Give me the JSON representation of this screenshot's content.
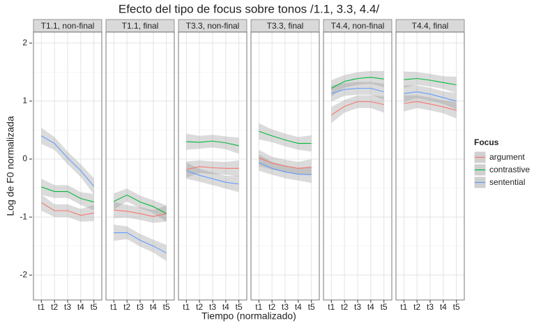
{
  "chart_data": {
    "type": "line",
    "title": "Efecto del tipo de focus sobre tonos /1.1, 3.3, 4.4/",
    "x_label": "Tiempo (normalizado)",
    "y_label": "Log de F0 normalizada",
    "legend_title": "Focus",
    "legend_position": "right",
    "grid": true,
    "categories": [
      "t1",
      "t2",
      "t3",
      "t4",
      "t5"
    ],
    "ylim": [
      -2.43,
      2.19
    ],
    "yticks": [
      -2,
      -1,
      0,
      1,
      2
    ],
    "series": [
      {
        "name": "argument",
        "color": "#F8766D"
      },
      {
        "name": "contrastive",
        "color": "#00BA38"
      },
      {
        "name": "sentential",
        "color": "#619CFF"
      }
    ],
    "facets": [
      {
        "title": "T1.1, non-final",
        "values": [
          [
            -0.75,
            -0.89,
            -0.89,
            -0.97,
            -0.93
          ],
          [
            -0.48,
            -0.56,
            -0.56,
            -0.68,
            -0.74
          ],
          [
            0.4,
            0.27,
            0.02,
            -0.2,
            -0.47
          ]
        ],
        "lower": [
          [
            -0.89,
            -1.0,
            -1.0,
            -1.08,
            -1.07
          ],
          [
            -0.62,
            -0.67,
            -0.67,
            -0.79,
            -0.88
          ],
          [
            0.26,
            0.16,
            -0.09,
            -0.31,
            -0.61
          ]
        ],
        "upper": [
          [
            -0.61,
            -0.78,
            -0.78,
            -0.86,
            -0.79
          ],
          [
            -0.34,
            -0.45,
            -0.45,
            -0.57,
            -0.6
          ],
          [
            0.54,
            0.38,
            0.13,
            -0.09,
            -0.33
          ]
        ]
      },
      {
        "title": "T1.1, final",
        "values": [
          [
            -0.88,
            -0.9,
            -0.94,
            -0.99,
            -0.94
          ],
          [
            -0.73,
            -0.62,
            -0.74,
            -0.82,
            -0.94
          ],
          [
            -1.27,
            -1.27,
            -1.4,
            -1.5,
            -1.62
          ]
        ],
        "lower": [
          [
            -1.02,
            -1.01,
            -1.05,
            -1.1,
            -1.08
          ],
          [
            -0.87,
            -0.73,
            -0.85,
            -0.93,
            -1.08
          ],
          [
            -1.41,
            -1.38,
            -1.51,
            -1.61,
            -1.76
          ]
        ],
        "upper": [
          [
            -0.74,
            -0.79,
            -0.83,
            -0.88,
            -0.8
          ],
          [
            -0.59,
            -0.51,
            -0.63,
            -0.71,
            -0.8
          ],
          [
            -1.13,
            -1.16,
            -1.29,
            -1.39,
            -1.48
          ]
        ]
      },
      {
        "title": "T3.3, non-final",
        "values": [
          [
            -0.18,
            -0.13,
            -0.15,
            -0.16,
            -0.16
          ],
          [
            0.3,
            0.29,
            0.31,
            0.28,
            0.23
          ],
          [
            -0.2,
            -0.28,
            -0.34,
            -0.4,
            -0.43
          ]
        ],
        "lower": [
          [
            -0.32,
            -0.24,
            -0.26,
            -0.27,
            -0.3
          ],
          [
            0.16,
            0.18,
            0.2,
            0.17,
            0.09
          ],
          [
            -0.34,
            -0.39,
            -0.45,
            -0.51,
            -0.57
          ]
        ],
        "upper": [
          [
            -0.04,
            -0.02,
            -0.04,
            -0.05,
            -0.02
          ],
          [
            0.44,
            0.4,
            0.42,
            0.39,
            0.37
          ],
          [
            -0.06,
            -0.17,
            -0.23,
            -0.29,
            -0.29
          ]
        ]
      },
      {
        "title": "T3.3, final",
        "values": [
          [
            0.02,
            -0.07,
            -0.12,
            -0.16,
            -0.14
          ],
          [
            0.48,
            0.4,
            0.33,
            0.27,
            0.27
          ],
          [
            -0.06,
            -0.16,
            -0.22,
            -0.26,
            -0.27
          ]
        ],
        "lower": [
          [
            -0.12,
            -0.18,
            -0.23,
            -0.27,
            -0.28
          ],
          [
            0.34,
            0.29,
            0.22,
            0.16,
            0.13
          ],
          [
            -0.2,
            -0.27,
            -0.33,
            -0.37,
            -0.41
          ]
        ],
        "upper": [
          [
            0.16,
            0.04,
            -0.01,
            -0.05,
            0
          ],
          [
            0.62,
            0.51,
            0.44,
            0.38,
            0.41
          ],
          [
            0.08,
            -0.05,
            -0.11,
            -0.15,
            -0.13
          ]
        ]
      },
      {
        "title": "T4.4, non-final",
        "values": [
          [
            0.76,
            0.91,
            0.99,
            0.99,
            0.94
          ],
          [
            1.22,
            1.34,
            1.39,
            1.41,
            1.38
          ],
          [
            1.13,
            1.2,
            1.22,
            1.22,
            1.16
          ]
        ],
        "lower": [
          [
            0.62,
            0.8,
            0.88,
            0.88,
            0.8
          ],
          [
            1.08,
            1.23,
            1.28,
            1.3,
            1.24
          ],
          [
            0.99,
            1.09,
            1.11,
            1.11,
            1.02
          ]
        ],
        "upper": [
          [
            0.9,
            1.02,
            1.1,
            1.1,
            1.08
          ],
          [
            1.36,
            1.45,
            1.5,
            1.52,
            1.52
          ],
          [
            1.27,
            1.31,
            1.33,
            1.33,
            1.3
          ]
        ]
      },
      {
        "title": "T4.4, final",
        "values": [
          [
            0.96,
            0.99,
            0.95,
            0.9,
            0.84
          ],
          [
            1.37,
            1.39,
            1.36,
            1.32,
            1.28
          ],
          [
            1.13,
            1.16,
            1.12,
            1.06,
            1.0
          ]
        ],
        "lower": [
          [
            0.82,
            0.88,
            0.84,
            0.79,
            0.7
          ],
          [
            1.23,
            1.28,
            1.25,
            1.21,
            1.14
          ],
          [
            0.99,
            1.05,
            1.01,
            0.95,
            0.86
          ]
        ],
        "upper": [
          [
            1.1,
            1.1,
            1.06,
            1.01,
            0.98
          ],
          [
            1.51,
            1.5,
            1.47,
            1.43,
            1.42
          ],
          [
            1.27,
            1.27,
            1.23,
            1.17,
            1.14
          ]
        ]
      }
    ]
  }
}
